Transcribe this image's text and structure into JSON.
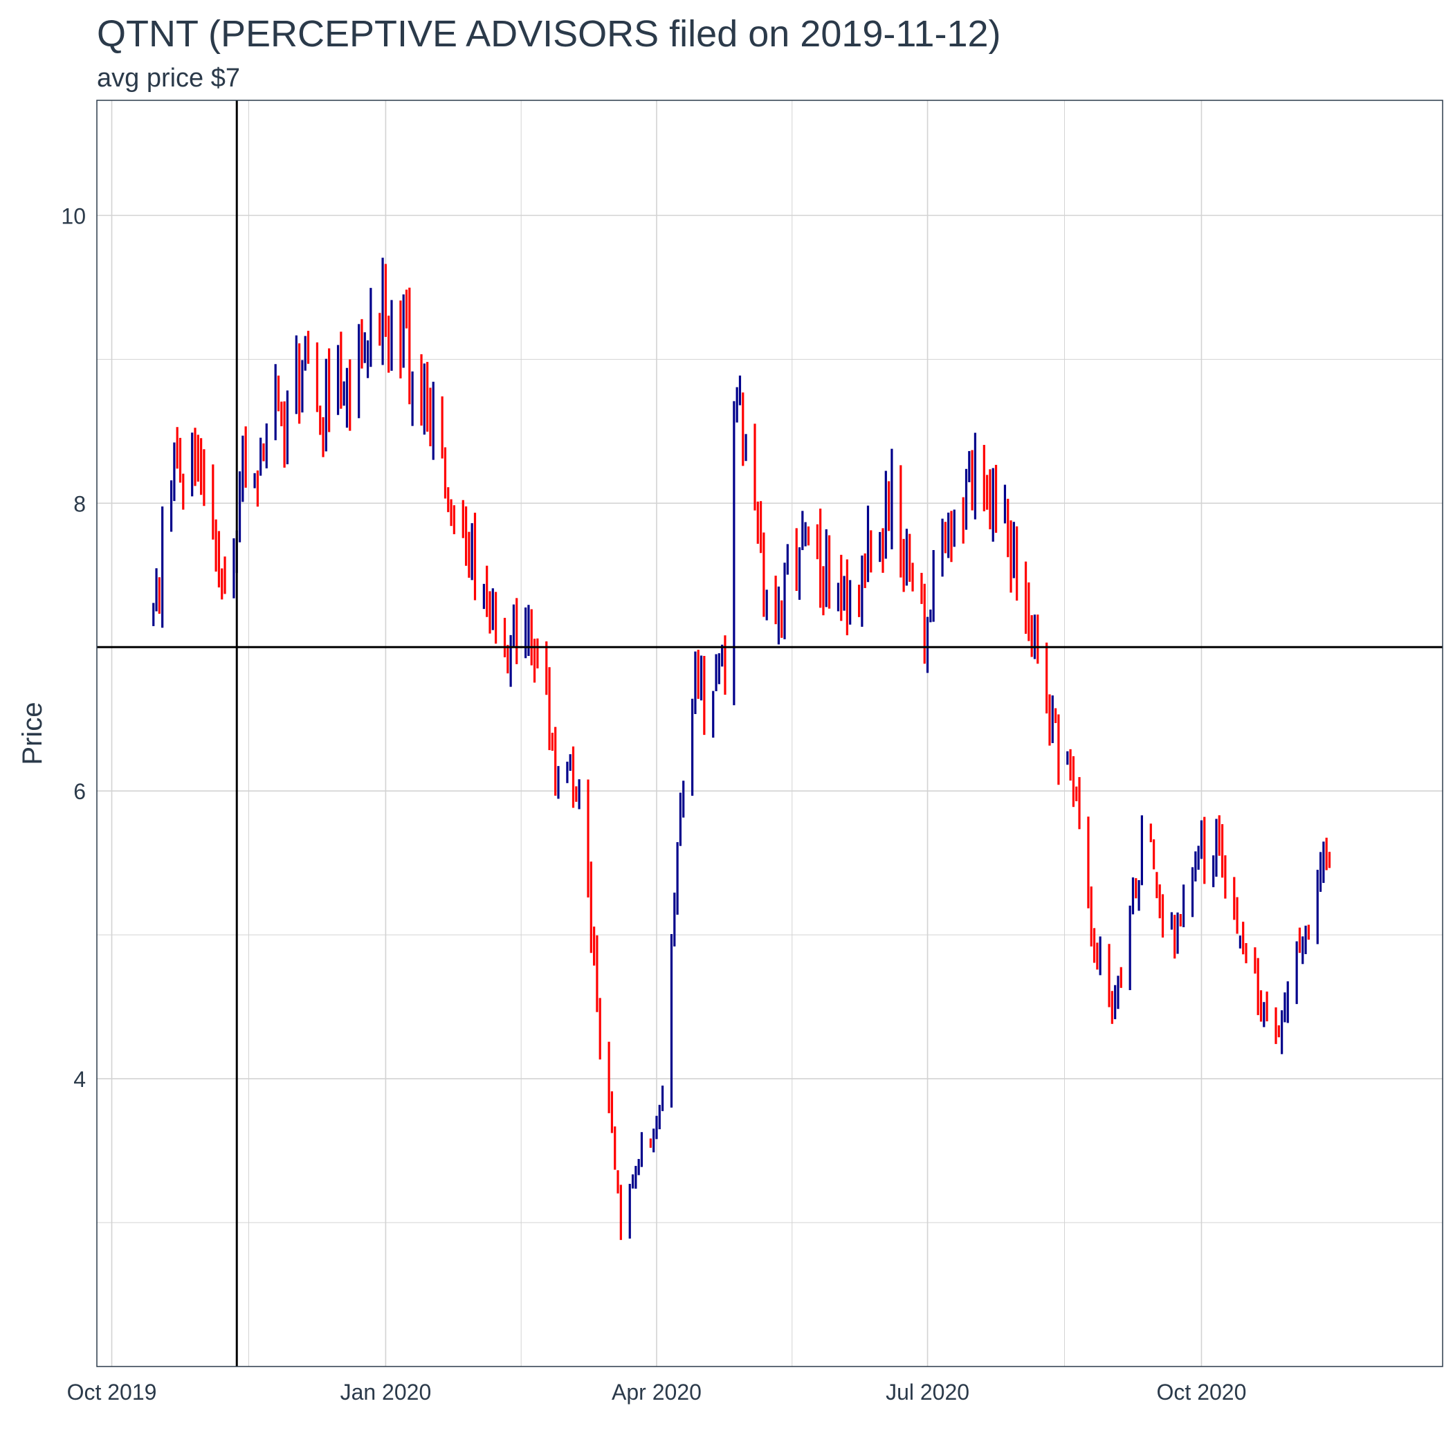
{
  "chart_data": {
    "type": "ohlc",
    "title": "QTNT (PERCEPTIVE ADVISORS filed on 2019-11-12)",
    "subtitle": "avg price $7",
    "ylabel": "Price",
    "xlabel": "",
    "ylim": [
      2.0,
      10.8
    ],
    "y_ticks": [
      4,
      6,
      8,
      10
    ],
    "x_range": [
      "2019-09-26",
      "2020-12-21"
    ],
    "x_ticks": [
      {
        "date": "2019-10-01",
        "label": "Oct 2019"
      },
      {
        "date": "2020-01-01",
        "label": "Jan 2020"
      },
      {
        "date": "2020-04-01",
        "label": "Apr 2020"
      },
      {
        "date": "2020-07-01",
        "label": "Jul 2020"
      },
      {
        "date": "2020-10-01",
        "label": "Oct 2020"
      }
    ],
    "grid": true,
    "reference_lines": {
      "vertical_date": "2019-11-12",
      "horizontal_price": 7
    },
    "colors": {
      "up": "#00008b",
      "down": "#ff0000",
      "reference": "#000000",
      "grid": "#d3d3d3",
      "text": "#2b3a4a"
    },
    "anchors": [
      [
        "2019-10-15",
        7.2
      ],
      [
        "2019-10-18",
        7.7
      ],
      [
        "2019-10-22",
        8.4
      ],
      [
        "2019-10-25",
        8.1
      ],
      [
        "2019-10-29",
        8.4
      ],
      [
        "2019-11-01",
        8.1
      ],
      [
        "2019-11-05",
        7.6
      ],
      [
        "2019-11-08",
        7.3
      ],
      [
        "2019-11-12",
        7.9
      ],
      [
        "2019-11-15",
        8.3
      ],
      [
        "2019-11-19",
        8.3
      ],
      [
        "2019-11-22",
        8.4
      ],
      [
        "2019-11-26",
        8.7
      ],
      [
        "2019-11-29",
        8.6
      ],
      [
        "2019-12-03",
        8.9
      ],
      [
        "2019-12-06",
        8.9
      ],
      [
        "2019-12-10",
        8.7
      ],
      [
        "2019-12-13",
        8.7
      ],
      [
        "2019-12-17",
        8.9
      ],
      [
        "2019-12-20",
        8.9
      ],
      [
        "2019-12-24",
        9.0
      ],
      [
        "2019-12-27",
        9.2
      ],
      [
        "2019-12-31",
        9.4
      ],
      [
        "2020-01-03",
        9.1
      ],
      [
        "2020-01-07",
        9.1
      ],
      [
        "2020-01-10",
        8.9
      ],
      [
        "2020-01-14",
        8.7
      ],
      [
        "2020-01-17",
        8.5
      ],
      [
        "2020-01-21",
        8.2
      ],
      [
        "2020-01-24",
        8.0
      ],
      [
        "2020-01-28",
        7.8
      ],
      [
        "2020-01-31",
        7.5
      ],
      [
        "2020-02-04",
        7.4
      ],
      [
        "2020-02-07",
        7.1
      ],
      [
        "2020-02-11",
        7.1
      ],
      [
        "2020-02-14",
        7.0
      ],
      [
        "2020-02-18",
        7.1
      ],
      [
        "2020-02-21",
        7.0
      ],
      [
        "2020-02-25",
        6.5
      ],
      [
        "2020-02-28",
        6.1
      ],
      [
        "2020-03-03",
        6.2
      ],
      [
        "2020-03-06",
        6.0
      ],
      [
        "2020-03-10",
        5.1
      ],
      [
        "2020-03-13",
        4.2
      ],
      [
        "2020-03-17",
        3.7
      ],
      [
        "2020-03-20",
        2.9
      ],
      [
        "2020-03-24",
        3.3
      ],
      [
        "2020-03-27",
        3.5
      ],
      [
        "2020-03-31",
        3.6
      ],
      [
        "2020-04-03",
        3.9
      ],
      [
        "2020-04-07",
        5.3
      ],
      [
        "2020-04-10",
        6.1
      ],
      [
        "2020-04-14",
        6.9
      ],
      [
        "2020-04-17",
        6.5
      ],
      [
        "2020-04-21",
        6.7
      ],
      [
        "2020-04-24",
        6.9
      ],
      [
        "2020-04-28",
        8.9
      ],
      [
        "2020-05-01",
        8.3
      ],
      [
        "2020-05-05",
        7.7
      ],
      [
        "2020-05-08",
        7.3
      ],
      [
        "2020-05-12",
        7.2
      ],
      [
        "2020-05-15",
        7.5
      ],
      [
        "2020-05-19",
        7.6
      ],
      [
        "2020-05-22",
        7.7
      ],
      [
        "2020-05-26",
        7.5
      ],
      [
        "2020-05-29",
        7.6
      ],
      [
        "2020-06-02",
        7.4
      ],
      [
        "2020-06-05",
        7.3
      ],
      [
        "2020-06-09",
        7.5
      ],
      [
        "2020-06-12",
        7.8
      ],
      [
        "2020-06-16",
        7.8
      ],
      [
        "2020-06-19",
        8.0
      ],
      [
        "2020-06-23",
        7.7
      ],
      [
        "2020-06-26",
        7.4
      ],
      [
        "2020-06-30",
        7.1
      ],
      [
        "2020-07-03",
        7.5
      ],
      [
        "2020-07-07",
        7.6
      ],
      [
        "2020-07-10",
        7.8
      ],
      [
        "2020-07-14",
        8.0
      ],
      [
        "2020-07-17",
        8.3
      ],
      [
        "2020-07-21",
        8.2
      ],
      [
        "2020-07-24",
        8.0
      ],
      [
        "2020-07-28",
        7.8
      ],
      [
        "2020-07-31",
        7.6
      ],
      [
        "2020-08-04",
        7.2
      ],
      [
        "2020-08-07",
        6.9
      ],
      [
        "2020-08-11",
        6.6
      ],
      [
        "2020-08-14",
        6.3
      ],
      [
        "2020-08-18",
        6.3
      ],
      [
        "2020-08-21",
        5.8
      ],
      [
        "2020-08-25",
        5.0
      ],
      [
        "2020-08-28",
        4.8
      ],
      [
        "2020-09-01",
        4.6
      ],
      [
        "2020-09-04",
        4.8
      ],
      [
        "2020-09-08",
        5.2
      ],
      [
        "2020-09-11",
        5.6
      ],
      [
        "2020-09-15",
        5.5
      ],
      [
        "2020-09-18",
        5.1
      ],
      [
        "2020-09-22",
        5.0
      ],
      [
        "2020-09-25",
        5.3
      ],
      [
        "2020-09-29",
        5.4
      ],
      [
        "2020-10-02",
        5.6
      ],
      [
        "2020-10-06",
        5.7
      ],
      [
        "2020-10-09",
        5.4
      ],
      [
        "2020-10-13",
        5.1
      ],
      [
        "2020-10-16",
        4.9
      ],
      [
        "2020-10-20",
        4.6
      ],
      [
        "2020-10-23",
        4.5
      ],
      [
        "2020-10-27",
        4.4
      ],
      [
        "2020-10-30",
        4.5
      ],
      [
        "2020-11-03",
        5.0
      ],
      [
        "2020-11-06",
        5.1
      ],
      [
        "2020-11-10",
        5.5
      ],
      [
        "2020-11-13",
        5.7
      ]
    ]
  }
}
